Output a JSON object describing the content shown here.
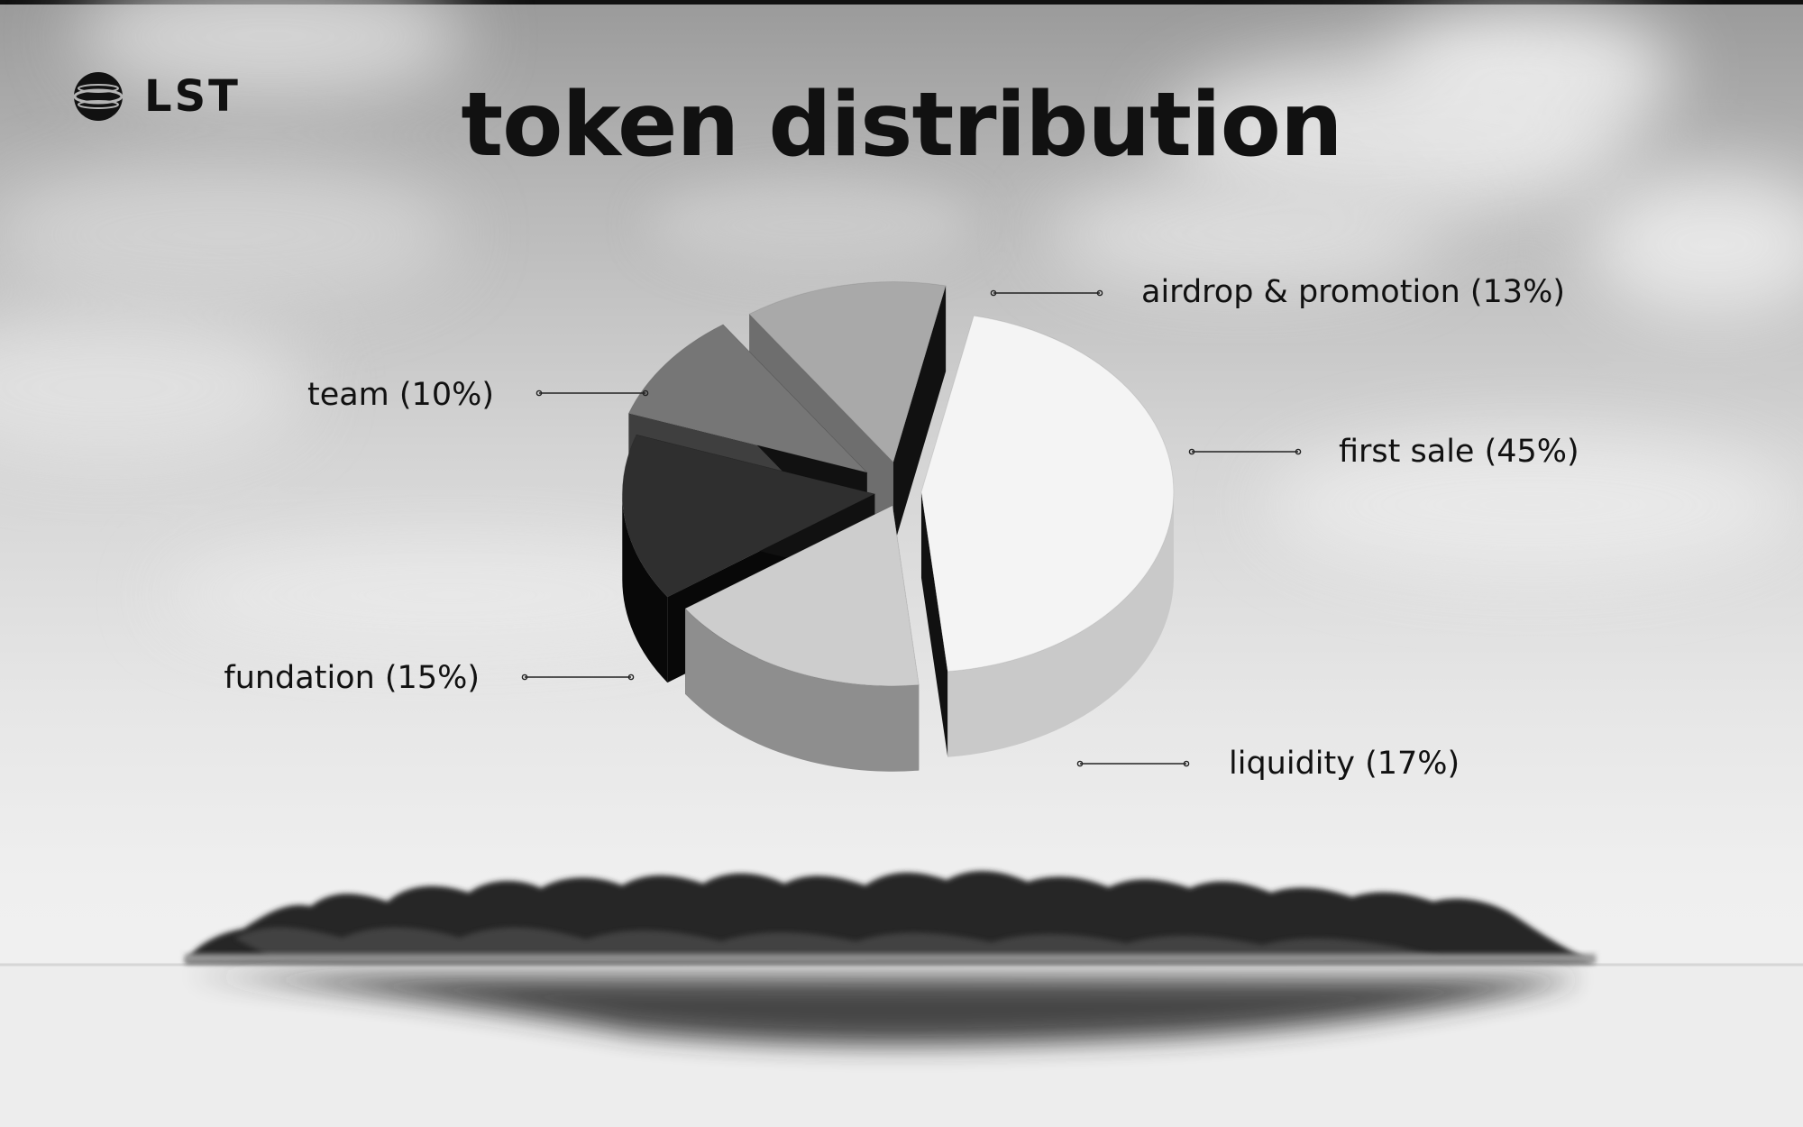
{
  "logo": {
    "text": "LST"
  },
  "chart_data": {
    "type": "pie",
    "title": "token distribution",
    "slices": [
      {
        "label": "first sale (45%)",
        "name": "first sale",
        "value": 45,
        "color": "#f4f4f4",
        "side": "#c9c9c9"
      },
      {
        "label": "liquidity (17%)",
        "name": "liquidity",
        "value": 17,
        "color": "#cdcdcd",
        "side": "#8e8e8e"
      },
      {
        "label": "fundation (15%)",
        "name": "fundation",
        "value": 15,
        "color": "#2f2f2f",
        "side": "#080808"
      },
      {
        "label": "team (10%)",
        "name": "team",
        "value": 10,
        "color": "#767676",
        "side": "#3f3f3f"
      },
      {
        "label": "airdrop & promotion (13%)",
        "name": "airdrop & promotion",
        "value": 13,
        "color": "#a9a9a9",
        "side": "#6e6e6e"
      }
    ],
    "legend": "callout labels around pie"
  }
}
